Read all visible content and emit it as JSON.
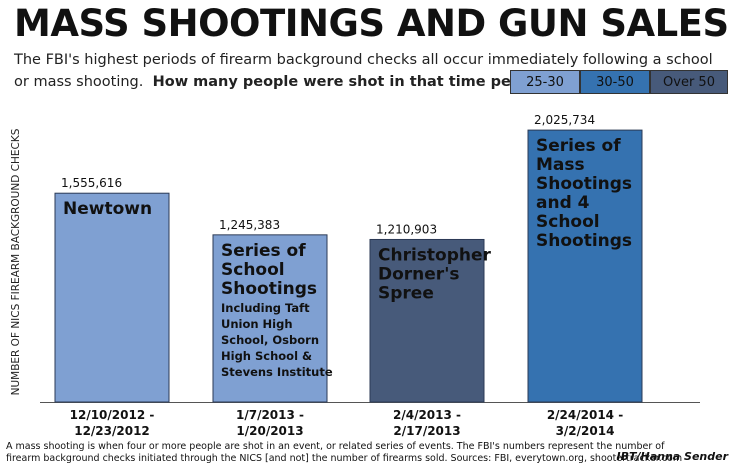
{
  "title": "MASS SHOOTINGS AND GUN SALES",
  "subtitle_line1": "The FBI's highest periods of firearm background checks all occur immediately following a school",
  "subtitle_line2_text": "or mass shooting.",
  "subtitle_line2_bold": "How many people were shot in that time period:",
  "legend": [
    {
      "label": "25-30",
      "color": "#7fa0d2"
    },
    {
      "label": "30-50",
      "color": "#3572b0"
    },
    {
      "label": "Over 50",
      "color": "#475a7a"
    }
  ],
  "footer_line1": "A mass shooting is when four or more people are shot in an event, or related series of events.  The FBI's numbers represent the number of",
  "footer_line2": "firearm background checks initiated through the NICS [and not] the number of firearms sold. Sources: FBI, everytown.org, shootertracker.com",
  "credit": "IBT/Hanna Sender",
  "chart_data": {
    "type": "bar",
    "ylabel": "NUMBER OF NICS FIREARM BACKGROUND CHECKS",
    "xlabel": "",
    "ylim": [
      0,
      2250000
    ],
    "categories": [
      [
        "12/10/2012 -",
        "12/23/2012"
      ],
      [
        "1/7/2013 -",
        "1/20/2013"
      ],
      [
        "2/4/2013 -",
        "2/17/2013"
      ],
      [
        "2/24/2014 -",
        "3/2/2014"
      ]
    ],
    "values": [
      1555616,
      1245383,
      1210903,
      2025734
    ],
    "value_labels": [
      "1,555,616",
      "1,245,383",
      "1,210,903",
      "2,025,734"
    ],
    "bar_colors": [
      "#7fa0d2",
      "#7fa0d2",
      "#475a7a",
      "#3572b0"
    ],
    "annotations": [
      {
        "lines": [
          "Newtown"
        ],
        "sublines": []
      },
      {
        "lines": [
          "Series of",
          "School",
          "Shootings"
        ],
        "sublines": [
          "Including Taft",
          "Union High",
          "School, Osborn",
          "High School &",
          "Stevens Institute"
        ]
      },
      {
        "lines": [
          "Christopher",
          "Dorner's",
          "Spree"
        ],
        "sublines": []
      },
      {
        "lines": [
          "Series of",
          "Mass",
          "Shootings",
          "and 4",
          "School",
          "Shootings"
        ],
        "sublines": []
      }
    ]
  }
}
